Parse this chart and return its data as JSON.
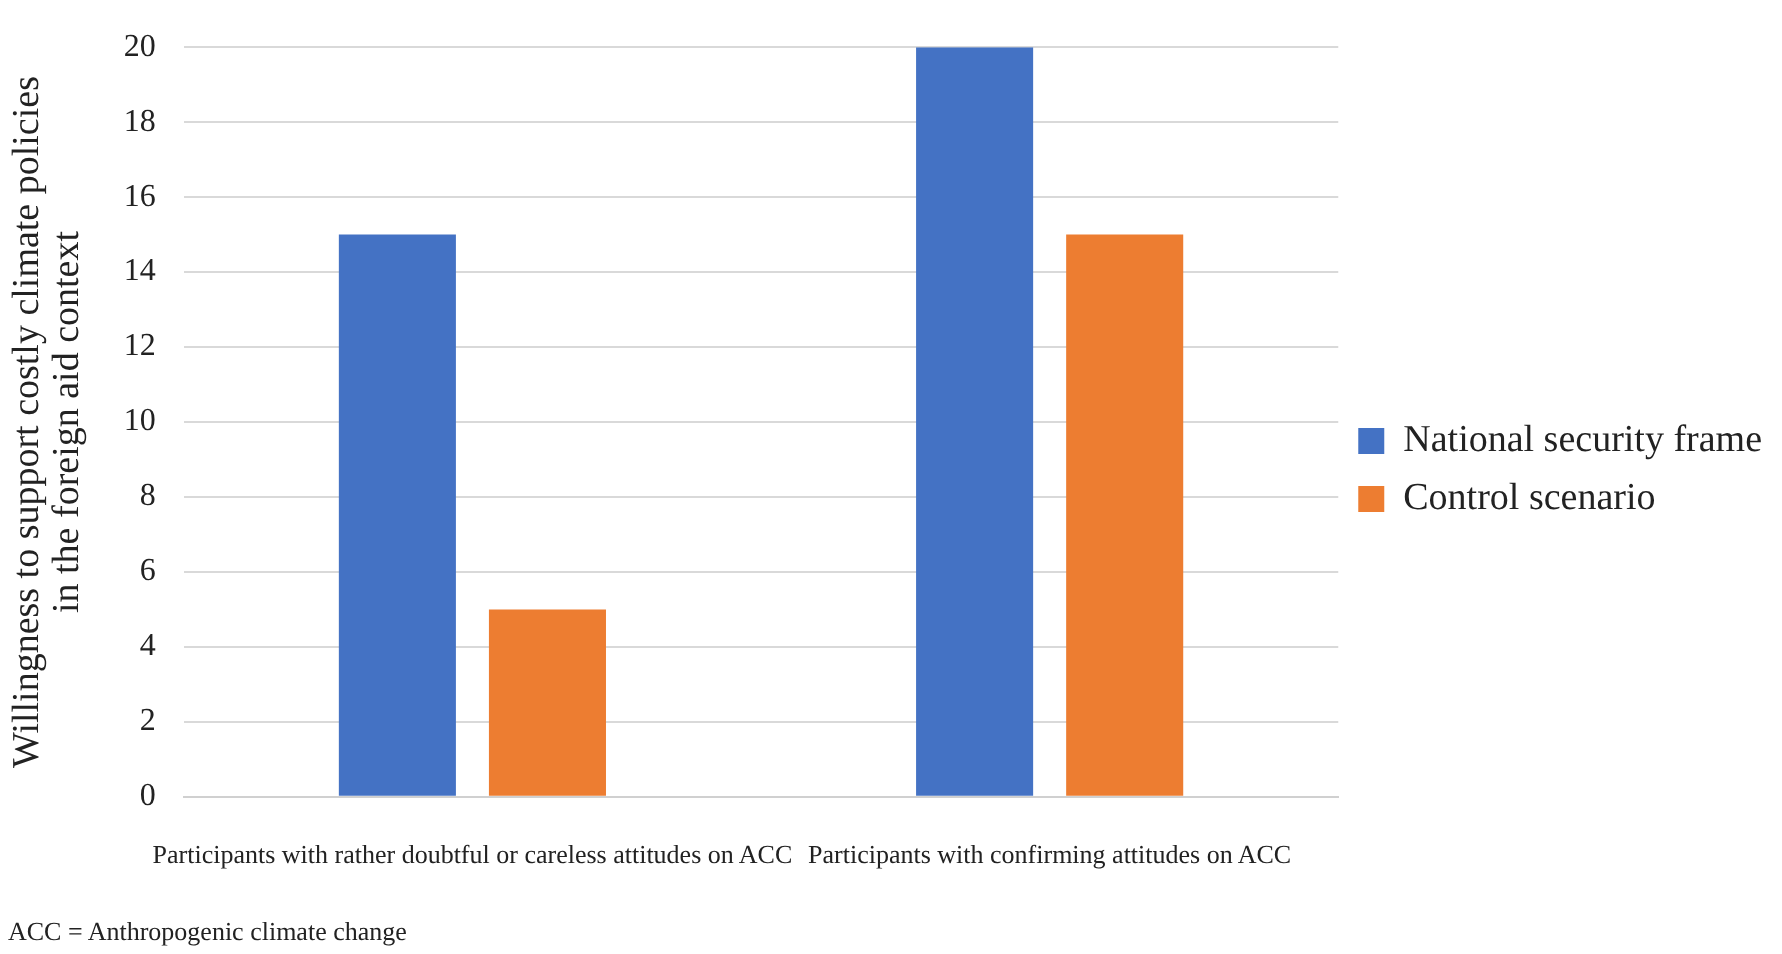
{
  "chart_data": {
    "type": "bar",
    "ylabel": "Willingness to support costly climate policies\nin the foreign aid context",
    "categories": [
      "Participants with rather doubtful or careless attitudes on ACC",
      "Participants with confirming attitudes on ACC"
    ],
    "series": [
      {
        "name": "National security frame",
        "color": "#4472c4",
        "values": [
          15,
          20
        ]
      },
      {
        "name": "Control scenario",
        "color": "#ed7d31",
        "values": [
          5,
          15
        ]
      }
    ],
    "ylim": [
      0,
      20
    ],
    "yticks": [
      0,
      2,
      4,
      6,
      8,
      10,
      12,
      14,
      16,
      18,
      20
    ],
    "grid": "y",
    "legend": "right",
    "annotations": [
      "ACC = Anthropogenic climate change"
    ]
  }
}
